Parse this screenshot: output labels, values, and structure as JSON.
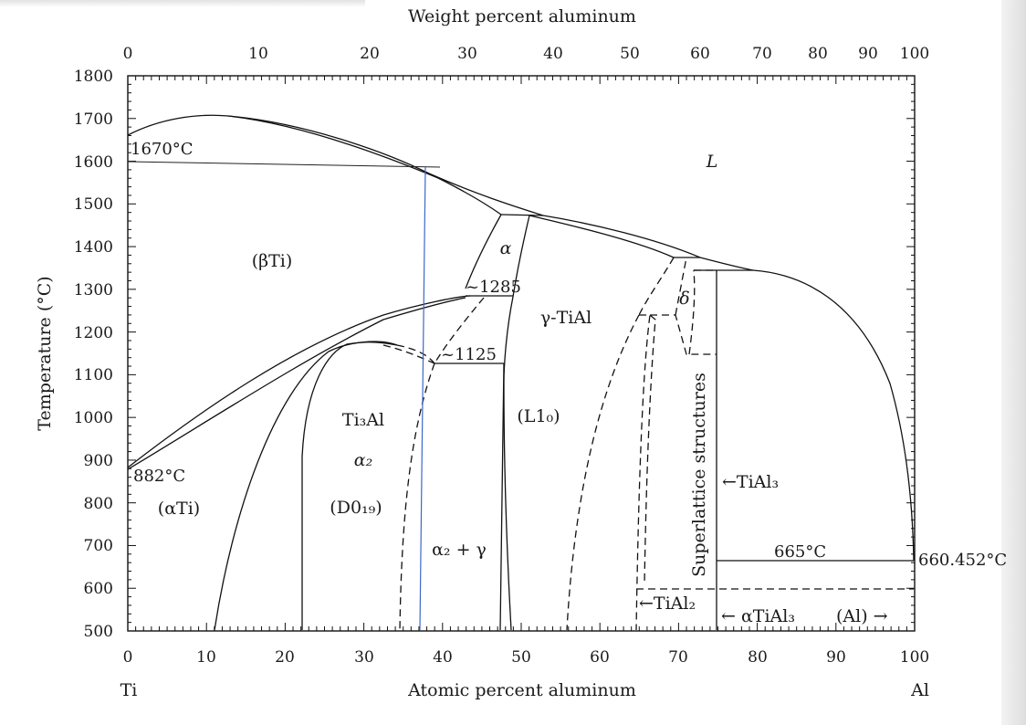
{
  "diagram": {
    "top_axis_title": "Weight percent aluminum",
    "bottom_axis_title": "Atomic percent aluminum",
    "y_axis_title": "Temperature (°C)",
    "left_element": "Ti",
    "right_element": "Al",
    "y_ticks": [
      "1800",
      "1700",
      "1600",
      "1500",
      "1400",
      "1300",
      "1200",
      "1100",
      "1000",
      "900",
      "800",
      "700",
      "600",
      "500"
    ],
    "x_ticks": [
      "0",
      "10",
      "20",
      "30",
      "40",
      "50",
      "60",
      "70",
      "80",
      "90",
      "100"
    ],
    "top_ticks": [
      "0",
      "10",
      "20",
      "30",
      "40",
      "50",
      "60",
      "70",
      "80",
      "90",
      "100"
    ],
    "regions": {
      "liquid": "L",
      "beta_ti": "(βTi)",
      "alpha": "α",
      "gamma_tial": "γ-TiAl",
      "l10": "(L1₀)",
      "ti3al": "Ti₃Al",
      "alpha2": "α₂",
      "d019": "(D0₁₉)",
      "alpha_ti": "(αTi)",
      "alpha2_gamma": "α₂ + γ",
      "delta": "δ",
      "superlattice": "Superlattice structures",
      "tial3": "←TiAl₃",
      "tial2": "←TiAl₂",
      "alpha_tial3": "← αTiAl₃",
      "al_phase": "(Al) →"
    },
    "annotations": {
      "melt_ti": "1670°C",
      "transform_ti": "882°C",
      "t1285": "~1285",
      "t1125": "~1125",
      "t665": "665°C",
      "melt_al": "660.452°C"
    }
  }
}
